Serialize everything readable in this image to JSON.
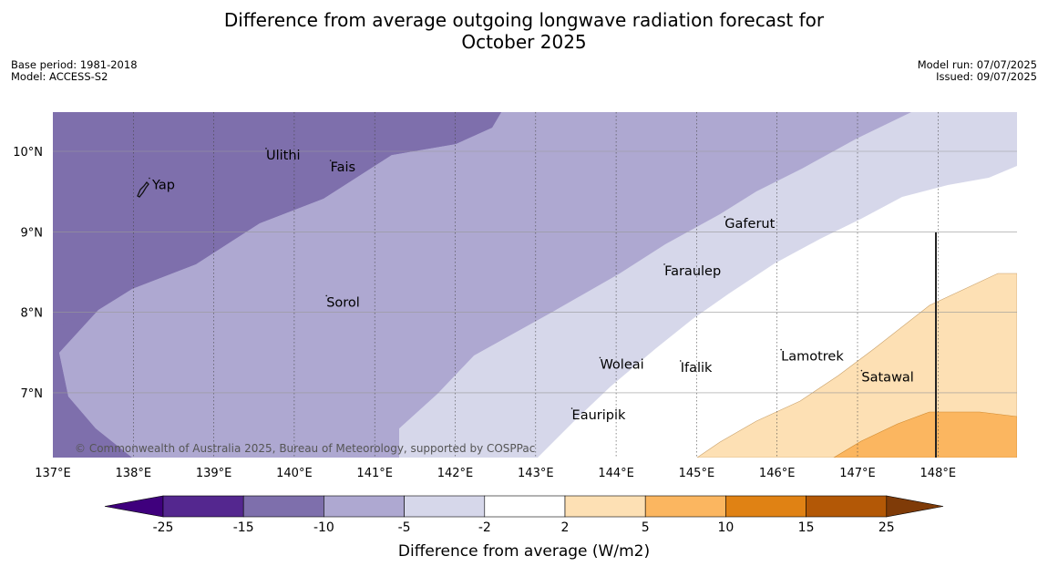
{
  "title": {
    "line1": "Difference from average outgoing longwave radiation forecast for",
    "line2": "October 2025"
  },
  "meta_left": [
    "Base period: 1981-2018",
    "Model: ACCESS-S2"
  ],
  "meta_right": [
    "Model run: 07/07/2025",
    "Issued: 09/07/2025"
  ],
  "map": {
    "lon_range": [
      137.0,
      149.0
    ],
    "lat_range": [
      6.2,
      10.5
    ],
    "lon_ticks": [
      "137°E",
      "138°E",
      "139°E",
      "140°E",
      "141°E",
      "142°E",
      "143°E",
      "144°E",
      "145°E",
      "146°E",
      "147°E",
      "148°E"
    ],
    "lat_ticks": [
      "10°N",
      "9°N",
      "8°N",
      "7°N"
    ],
    "places": [
      {
        "name": "Yap",
        "lon": 138.2,
        "lat": 9.53
      },
      {
        "name": "Ulithi",
        "lon": 139.65,
        "lat": 9.9
      },
      {
        "name": "Fais",
        "lon": 140.45,
        "lat": 9.75
      },
      {
        "name": "Gaferut",
        "lon": 145.35,
        "lat": 9.05
      },
      {
        "name": "Faraulep",
        "lon": 144.6,
        "lat": 8.46
      },
      {
        "name": "Sorol",
        "lon": 140.4,
        "lat": 8.07
      },
      {
        "name": "Lamotrek",
        "lon": 146.05,
        "lat": 7.4
      },
      {
        "name": "Woleai",
        "lon": 143.8,
        "lat": 7.3
      },
      {
        "name": "Ifalik",
        "lon": 144.8,
        "lat": 7.26
      },
      {
        "name": "Satawal",
        "lon": 147.05,
        "lat": 7.14
      },
      {
        "name": "Eauripik",
        "lon": 143.45,
        "lat": 6.67
      }
    ],
    "copyright": "© Commonwealth of Australia 2025, Bureau of Meteorology, supported by COSPPac"
  },
  "colorbar": {
    "labels": [
      "-25",
      "-15",
      "-10",
      "-5",
      "-2",
      "2",
      "5",
      "10",
      "15",
      "25"
    ],
    "colors": [
      "#3f007d",
      "#54278f",
      "#7e6fac",
      "#aea8d1",
      "#d6d7ea",
      "#ffffff",
      "#fde0b4",
      "#fbb660",
      "#e08214",
      "#b35806",
      "#7f3b08"
    ],
    "title": "Difference from average (W/m2)"
  }
}
